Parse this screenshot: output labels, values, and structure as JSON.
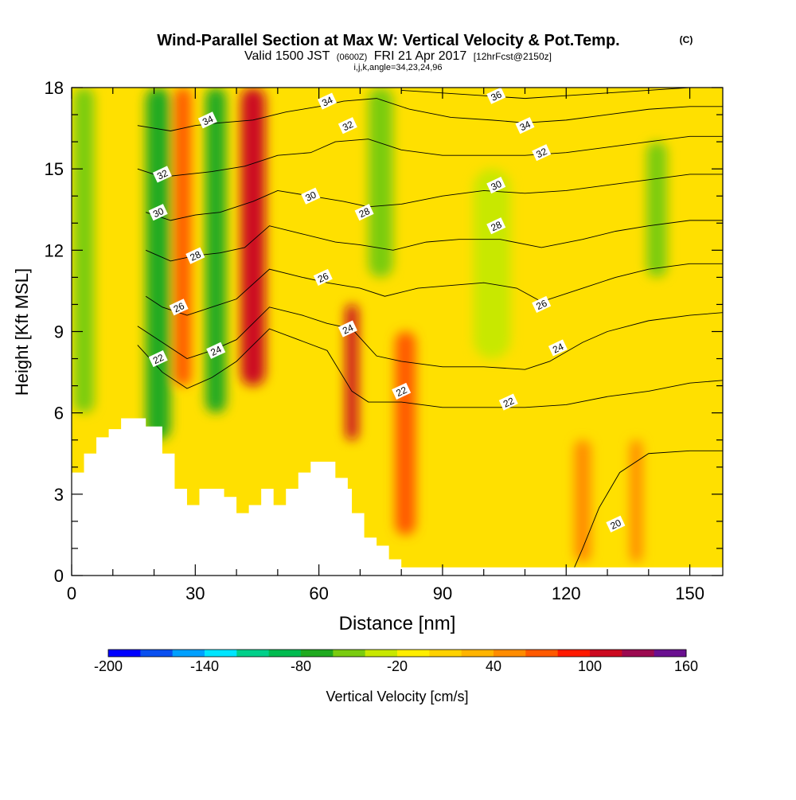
{
  "title": {
    "main": "Wind-Parallel Section at Max W: Vertical Velocity & Pot.Temp.",
    "copyright": "(C)",
    "valid_prefix": "Valid 1500 JST",
    "valid_utc": "(0600Z)",
    "valid_date": "FRI 21 Apr 2017",
    "forecast": "[12hrFcst@2150z]",
    "indices": "i,j,k,angle=34,23,24,96"
  },
  "chart_data": {
    "type": "heatmap",
    "title": "Wind-Parallel Section at Max W: Vertical Velocity & Pot.Temp.",
    "xlabel": "Distance [nm]",
    "ylabel": "Height [Kft MSL]",
    "xlim": [
      0,
      158
    ],
    "ylim": [
      0,
      18
    ],
    "x_ticks": [
      "0",
      "30",
      "60",
      "90",
      "120",
      "150"
    ],
    "y_ticks": [
      "0",
      "3",
      "6",
      "9",
      "12",
      "15",
      "18"
    ],
    "colorbar": {
      "label": "Vertical Velocity [cm/s]",
      "tick_labels": [
        "-200",
        "-140",
        "-80",
        "-20",
        "40",
        "100",
        "160"
      ],
      "boundaries": [
        -200,
        -180,
        -160,
        -140,
        -120,
        -100,
        -80,
        -60,
        -40,
        -20,
        0,
        20,
        40,
        60,
        80,
        100,
        120,
        140,
        160
      ],
      "colors": [
        "#0000ff",
        "#0a50f0",
        "#00a0ff",
        "#00e5ff",
        "#00d08a",
        "#00bb50",
        "#20aa20",
        "#7acc10",
        "#c8e800",
        "#ffee00",
        "#ffd200",
        "#ffb400",
        "#ff8c00",
        "#ff5a00",
        "#ff1a00",
        "#cc0a20",
        "#9b0a50",
        "#6a1090"
      ]
    },
    "velocity_bands": [
      {
        "x_center": 3,
        "width": 5,
        "y_min": 6,
        "y_max": 18,
        "value": -50
      },
      {
        "x_center": 21,
        "width": 6,
        "y_min": 5,
        "y_max": 18,
        "value": -70
      },
      {
        "x_center": 27,
        "width": 4,
        "y_min": 7,
        "y_max": 18,
        "value": 70
      },
      {
        "x_center": 35,
        "width": 5,
        "y_min": 6,
        "y_max": 18,
        "value": -70
      },
      {
        "x_center": 44,
        "width": 6,
        "y_min": 7,
        "y_max": 18,
        "value": 110
      },
      {
        "x_center": 75,
        "width": 6,
        "y_min": 11,
        "y_max": 18,
        "value": -60
      },
      {
        "x_center": 68,
        "width": 3,
        "y_min": 5,
        "y_max": 10,
        "value": 100
      },
      {
        "x_center": 81,
        "width": 5,
        "y_min": 1.5,
        "y_max": 9,
        "value": 60
      },
      {
        "x_center": 102,
        "width": 9,
        "y_min": 8,
        "y_max": 15,
        "value": -30
      },
      {
        "x_center": 142,
        "width": 5,
        "y_min": 11,
        "y_max": 16,
        "value": -50
      },
      {
        "x_center": 124,
        "width": 4,
        "y_min": 0.5,
        "y_max": 5,
        "value": 40
      },
      {
        "x_center": 137,
        "width": 3,
        "y_min": 0.5,
        "y_max": 5,
        "value": 50
      }
    ],
    "terrain": [
      [
        0,
        3.8
      ],
      [
        3,
        3.8
      ],
      [
        3,
        4.5
      ],
      [
        6,
        4.5
      ],
      [
        6,
        5.1
      ],
      [
        9,
        5.1
      ],
      [
        9,
        5.4
      ],
      [
        12,
        5.4
      ],
      [
        12,
        5.8
      ],
      [
        18,
        5.8
      ],
      [
        18,
        5.5
      ],
      [
        22,
        5.5
      ],
      [
        22,
        4.5
      ],
      [
        25,
        4.5
      ],
      [
        25,
        3.2
      ],
      [
        28,
        3.2
      ],
      [
        28,
        2.6
      ],
      [
        31,
        2.6
      ],
      [
        31,
        3.2
      ],
      [
        37,
        3.2
      ],
      [
        37,
        2.9
      ],
      [
        40,
        2.9
      ],
      [
        40,
        2.3
      ],
      [
        43,
        2.3
      ],
      [
        43,
        2.6
      ],
      [
        46,
        2.6
      ],
      [
        46,
        3.2
      ],
      [
        49,
        3.2
      ],
      [
        49,
        2.6
      ],
      [
        52,
        2.6
      ],
      [
        52,
        3.2
      ],
      [
        55,
        3.2
      ],
      [
        55,
        3.8
      ],
      [
        58,
        3.8
      ],
      [
        58,
        4.2
      ],
      [
        61,
        4.2
      ],
      [
        61,
        4.2
      ],
      [
        64,
        4.2
      ],
      [
        64,
        3.6
      ],
      [
        67,
        3.6
      ],
      [
        67,
        3.2
      ],
      [
        68,
        3.2
      ],
      [
        68,
        2.3
      ],
      [
        71,
        2.3
      ],
      [
        71,
        1.4
      ],
      [
        74,
        1.4
      ],
      [
        74,
        1.1
      ],
      [
        77,
        1.1
      ],
      [
        77,
        0.6
      ],
      [
        80,
        0.6
      ],
      [
        80,
        0.3
      ],
      [
        158,
        0.3
      ]
    ],
    "theta_contours": [
      {
        "label": "20",
        "points": [
          [
            122,
            0.3
          ],
          [
            124,
            1
          ],
          [
            128,
            2.5
          ],
          [
            133,
            3.8
          ],
          [
            140,
            4.5
          ],
          [
            150,
            4.6
          ],
          [
            158,
            4.6
          ]
        ]
      },
      {
        "label": "22",
        "points": [
          [
            16,
            8.5
          ],
          [
            22,
            7.5
          ],
          [
            28,
            6.9
          ],
          [
            34,
            7.3
          ],
          [
            40,
            7.9
          ],
          [
            48,
            9.1
          ],
          [
            55,
            8.7
          ],
          [
            62,
            8.3
          ],
          [
            68,
            6.8
          ],
          [
            72,
            6.4
          ],
          [
            80,
            6.4
          ],
          [
            90,
            6.2
          ],
          [
            100,
            6.2
          ],
          [
            110,
            6.2
          ],
          [
            120,
            6.3
          ],
          [
            130,
            6.6
          ],
          [
            140,
            6.8
          ],
          [
            150,
            7.1
          ],
          [
            158,
            7.2
          ]
        ]
      },
      {
        "label": "24",
        "points": [
          [
            16,
            9.2
          ],
          [
            22,
            8.6
          ],
          [
            28,
            8.0
          ],
          [
            34,
            8.3
          ],
          [
            40,
            8.7
          ],
          [
            48,
            9.9
          ],
          [
            56,
            9.6
          ],
          [
            62,
            9.3
          ],
          [
            68,
            9.1
          ],
          [
            74,
            8.1
          ],
          [
            80,
            7.9
          ],
          [
            90,
            7.7
          ],
          [
            100,
            7.7
          ],
          [
            110,
            7.6
          ],
          [
            116,
            7.9
          ],
          [
            124,
            8.6
          ],
          [
            130,
            9.0
          ],
          [
            140,
            9.4
          ],
          [
            150,
            9.6
          ],
          [
            158,
            9.7
          ]
        ]
      },
      {
        "label": "26",
        "points": [
          [
            18,
            10.3
          ],
          [
            22,
            9.9
          ],
          [
            28,
            9.6
          ],
          [
            34,
            9.9
          ],
          [
            40,
            10.2
          ],
          [
            48,
            11.3
          ],
          [
            56,
            11.0
          ],
          [
            62,
            10.8
          ],
          [
            70,
            10.6
          ],
          [
            76,
            10.3
          ],
          [
            84,
            10.6
          ],
          [
            92,
            10.7
          ],
          [
            100,
            10.8
          ],
          [
            108,
            10.6
          ],
          [
            114,
            10.1
          ],
          [
            124,
            10.6
          ],
          [
            132,
            11.0
          ],
          [
            140,
            11.3
          ],
          [
            150,
            11.5
          ],
          [
            158,
            11.5
          ]
        ]
      },
      {
        "label": "28",
        "points": [
          [
            18,
            12.0
          ],
          [
            24,
            11.6
          ],
          [
            30,
            11.8
          ],
          [
            36,
            11.9
          ],
          [
            42,
            12.1
          ],
          [
            48,
            12.9
          ],
          [
            56,
            12.6
          ],
          [
            64,
            12.3
          ],
          [
            70,
            12.2
          ],
          [
            78,
            12.0
          ],
          [
            86,
            12.3
          ],
          [
            94,
            12.4
          ],
          [
            104,
            12.4
          ],
          [
            114,
            12.1
          ],
          [
            124,
            12.4
          ],
          [
            132,
            12.7
          ],
          [
            140,
            12.9
          ],
          [
            150,
            13.1
          ],
          [
            158,
            13.1
          ]
        ]
      },
      {
        "label": "30",
        "points": [
          [
            18,
            13.4
          ],
          [
            24,
            13.1
          ],
          [
            30,
            13.3
          ],
          [
            36,
            13.4
          ],
          [
            44,
            13.8
          ],
          [
            50,
            14.2
          ],
          [
            58,
            14.0
          ],
          [
            66,
            13.8
          ],
          [
            72,
            13.6
          ],
          [
            80,
            13.7
          ],
          [
            90,
            14.0
          ],
          [
            100,
            14.2
          ],
          [
            110,
            14.1
          ],
          [
            120,
            14.2
          ],
          [
            130,
            14.4
          ],
          [
            140,
            14.6
          ],
          [
            150,
            14.8
          ],
          [
            158,
            14.8
          ]
        ]
      },
      {
        "label": "32",
        "points": [
          [
            16,
            15.0
          ],
          [
            22,
            14.7
          ],
          [
            28,
            14.8
          ],
          [
            34,
            14.9
          ],
          [
            42,
            15.1
          ],
          [
            50,
            15.5
          ],
          [
            58,
            15.6
          ],
          [
            64,
            16.0
          ],
          [
            72,
            16.1
          ],
          [
            80,
            15.7
          ],
          [
            90,
            15.5
          ],
          [
            100,
            15.5
          ],
          [
            110,
            15.5
          ],
          [
            120,
            15.6
          ],
          [
            130,
            15.8
          ],
          [
            140,
            16.0
          ],
          [
            150,
            16.2
          ],
          [
            158,
            16.2
          ]
        ]
      },
      {
        "label": "34",
        "points": [
          [
            16,
            16.6
          ],
          [
            24,
            16.4
          ],
          [
            30,
            16.6
          ],
          [
            36,
            16.7
          ],
          [
            44,
            16.8
          ],
          [
            52,
            17.1
          ],
          [
            60,
            17.3
          ],
          [
            66,
            17.5
          ],
          [
            74,
            17.6
          ],
          [
            82,
            17.2
          ],
          [
            92,
            16.9
          ],
          [
            102,
            16.8
          ],
          [
            110,
            16.7
          ],
          [
            120,
            16.8
          ],
          [
            130,
            17.0
          ],
          [
            140,
            17.2
          ],
          [
            150,
            17.3
          ],
          [
            158,
            17.3
          ]
        ]
      },
      {
        "label": "36",
        "points": [
          [
            80,
            17.9
          ],
          [
            90,
            17.8
          ],
          [
            100,
            17.7
          ],
          [
            110,
            17.6
          ],
          [
            120,
            17.7
          ],
          [
            130,
            17.8
          ],
          [
            140,
            17.9
          ],
          [
            150,
            18.0
          ]
        ]
      }
    ],
    "contour_labels": [
      {
        "text": "34",
        "x": 33,
        "y": 16.8
      },
      {
        "text": "34",
        "x": 62,
        "y": 17.5
      },
      {
        "text": "32",
        "x": 67,
        "y": 16.6
      },
      {
        "text": "36",
        "x": 103,
        "y": 17.7
      },
      {
        "text": "34",
        "x": 110,
        "y": 16.6
      },
      {
        "text": "32",
        "x": 114,
        "y": 15.6
      },
      {
        "text": "32",
        "x": 22,
        "y": 14.8
      },
      {
        "text": "30",
        "x": 58,
        "y": 14.0
      },
      {
        "text": "30",
        "x": 103,
        "y": 14.4
      },
      {
        "text": "30",
        "x": 21,
        "y": 13.4
      },
      {
        "text": "28",
        "x": 71,
        "y": 13.4
      },
      {
        "text": "28",
        "x": 103,
        "y": 12.9
      },
      {
        "text": "28",
        "x": 30,
        "y": 11.8
      },
      {
        "text": "26",
        "x": 61,
        "y": 11.0
      },
      {
        "text": "26",
        "x": 114,
        "y": 10.0
      },
      {
        "text": "26",
        "x": 26,
        "y": 9.9
      },
      {
        "text": "24",
        "x": 67,
        "y": 9.1
      },
      {
        "text": "24",
        "x": 118,
        "y": 8.4
      },
      {
        "text": "24",
        "x": 35,
        "y": 8.3
      },
      {
        "text": "22",
        "x": 21,
        "y": 8.0
      },
      {
        "text": "22",
        "x": 80,
        "y": 6.8
      },
      {
        "text": "22",
        "x": 106,
        "y": 6.4
      },
      {
        "text": "20",
        "x": 132,
        "y": 1.9
      }
    ]
  }
}
